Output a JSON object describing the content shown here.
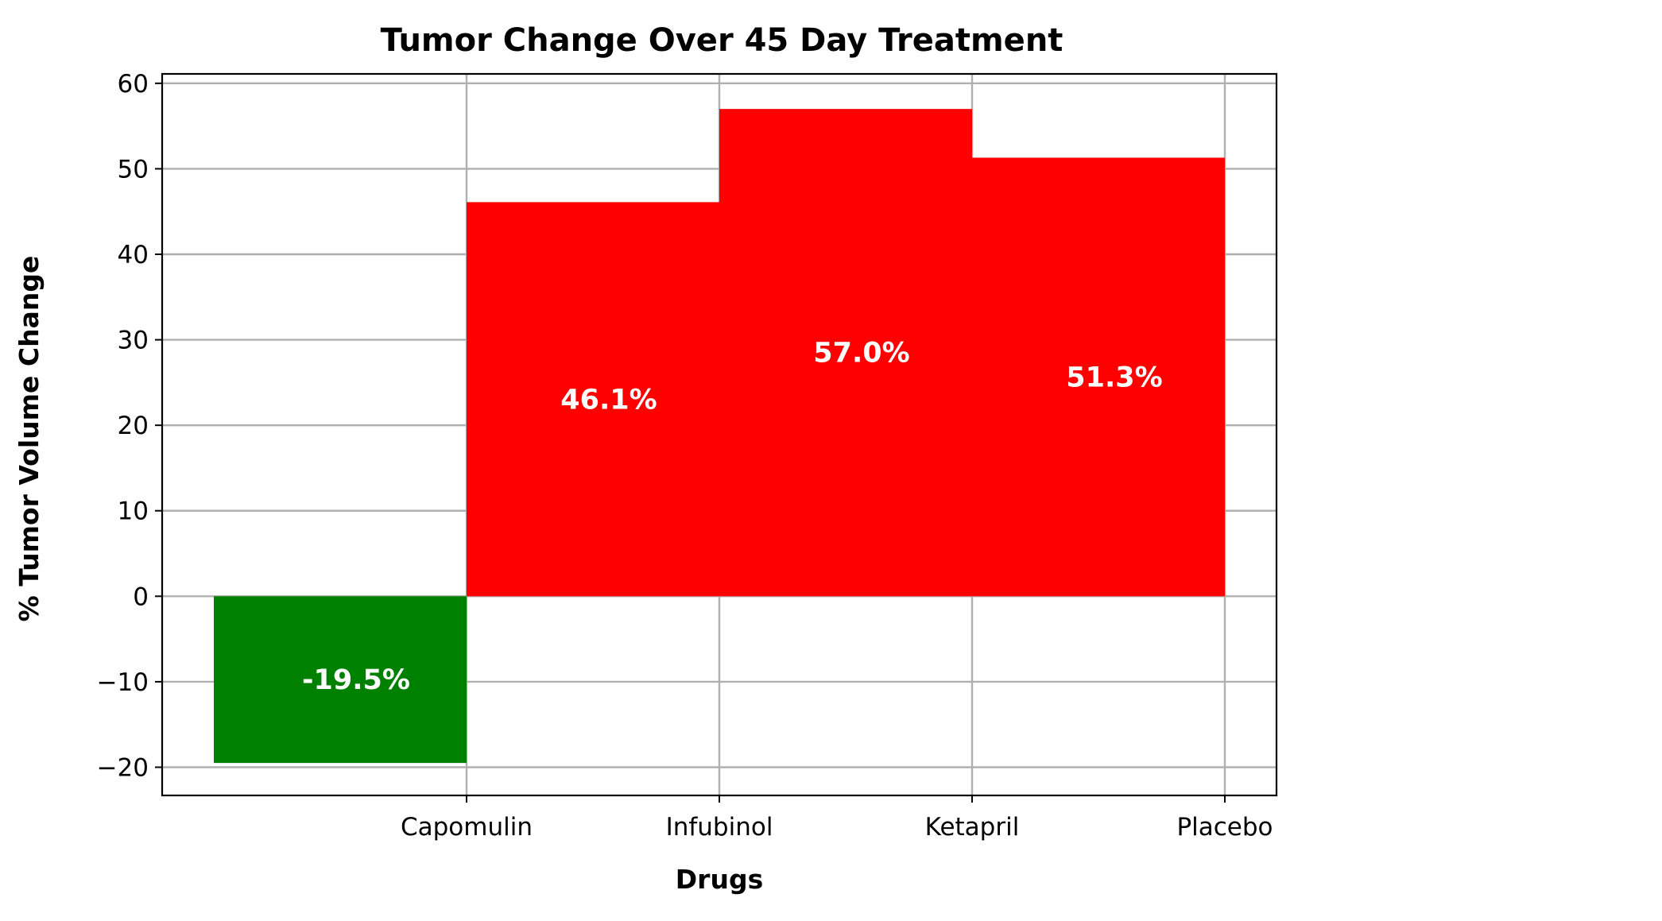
{
  "chart_data": {
    "type": "bar",
    "title": "Tumor Change Over 45 Day Treatment",
    "xlabel": "Drugs",
    "ylabel": "% Tumor Volume Change",
    "categories": [
      "Capomulin",
      "Infubinol",
      "Ketapril",
      "Placebo"
    ],
    "values": [
      -19.5,
      46.1,
      57.0,
      51.3
    ],
    "value_labels": [
      "-19.5%",
      "46.1%",
      "57.0%",
      "51.3%"
    ],
    "colors": [
      "#008000",
      "#ff0000",
      "#ff0000",
      "#ff0000"
    ],
    "positive_color": "#ff0000",
    "negative_color": "#008000",
    "ylim": [
      -23.3,
      61.1
    ],
    "yticks": [
      -20,
      -10,
      0,
      10,
      20,
      30,
      40,
      50,
      60
    ],
    "ytick_labels": [
      "−20",
      "−10",
      "0",
      "10",
      "20",
      "30",
      "40",
      "50",
      "60"
    ],
    "bar_alignment": "edge",
    "grid": true,
    "legend": false
  }
}
